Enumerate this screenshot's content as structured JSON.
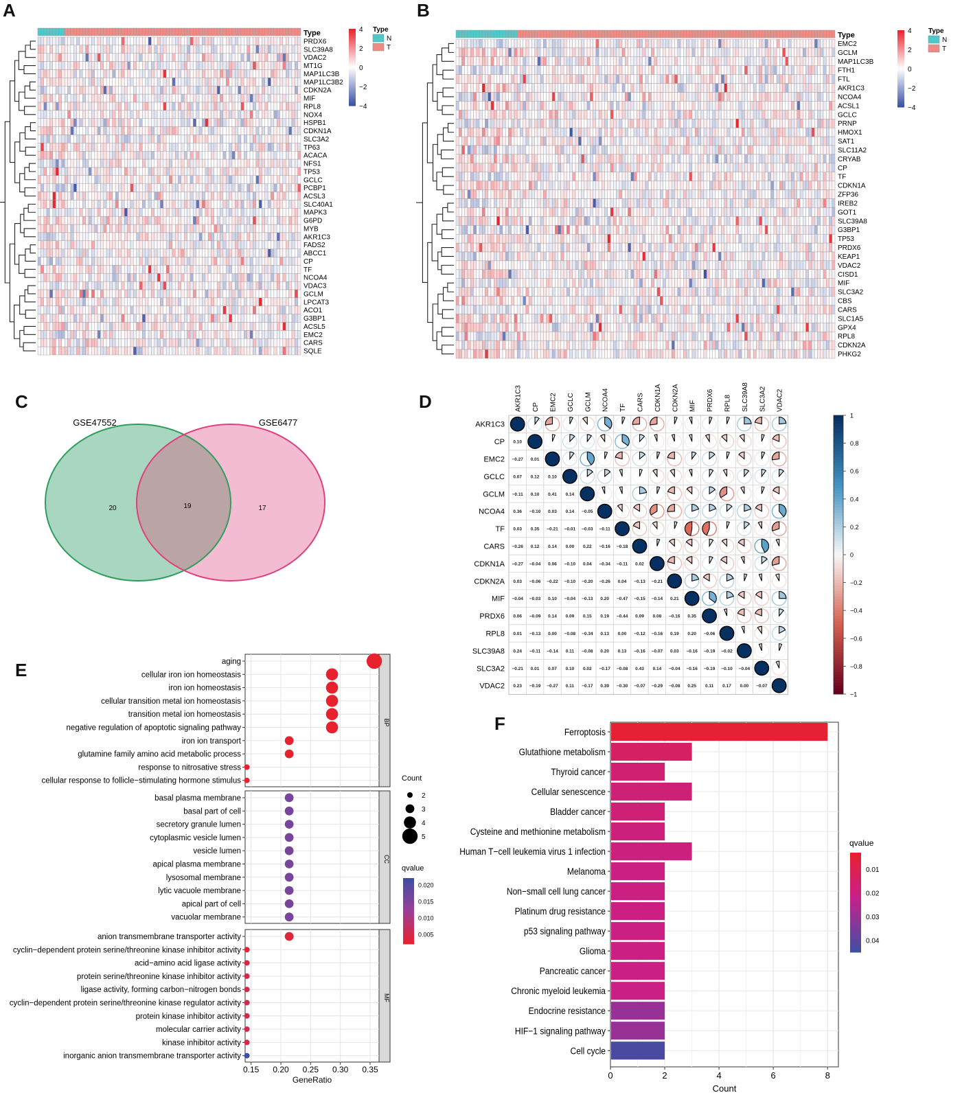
{
  "panels": {
    "A": {
      "letter": "A",
      "annotation_title": "Type",
      "legend_title": "Type",
      "groups": [
        {
          "label": "N",
          "color": "#4ec9c9"
        },
        {
          "label": "T",
          "color": "#f08a84"
        }
      ],
      "n_normal": 9,
      "n_tumor": 79,
      "colorbar_ticks": [
        4,
        2,
        0,
        -2,
        -4
      ],
      "colorbar_tick_labels": [
        "4",
        "2",
        "0",
        "−2",
        "−4"
      ],
      "genes": [
        "PRDX6",
        "SLC39A8",
        "VDAC2",
        "MT1G",
        "MAP1LC3B",
        "MAP1LC3B2",
        "CDKN2A",
        "MIF",
        "RPL8",
        "NOX4",
        "HSPB1",
        "CDKN1A",
        "SLC3A2",
        "TP63",
        "ACACA",
        "NFS1",
        "TP53",
        "GCLC",
        "PCBP1",
        "ACSL3",
        "SLC40A1",
        "MAPK3",
        "G6PD",
        "MYB",
        "AKR1C3",
        "FADS2",
        "ABCC1",
        "CP",
        "TF",
        "NCOA4",
        "VDAC3",
        "GCLM",
        "LPCAT3",
        "ACO1",
        "G3BP1",
        "ACSL5",
        "EMC2",
        "CARS",
        "SQLE"
      ]
    },
    "B": {
      "letter": "B",
      "annotation_title": "Type",
      "legend_title": "Type",
      "groups": [
        {
          "label": "N",
          "color": "#4ec9c9"
        },
        {
          "label": "T",
          "color": "#f08a84"
        }
      ],
      "n_normal": 21,
      "n_tumor": 109,
      "colorbar_ticks": [
        4,
        2,
        0,
        -2,
        -4
      ],
      "colorbar_tick_labels": [
        "4",
        "2",
        "0",
        "−2",
        "−4"
      ],
      "genes": [
        "EMC2",
        "GCLM",
        "MAP1LC3B",
        "FTH1",
        "FTL",
        "AKR1C3",
        "NCOA4",
        "ACSL1",
        "GCLC",
        "PRNP",
        "HMOX1",
        "SAT1",
        "SLC11A2",
        "CRYAB",
        "CP",
        "TF",
        "CDKN1A",
        "ZFP36",
        "IREB2",
        "GOT1",
        "SLC39A8",
        "G3BP1",
        "TP53",
        "PRDX6",
        "KEAP1",
        "VDAC2",
        "CISD1",
        "MIF",
        "SLC3A2",
        "CBS",
        "CARS",
        "SLC1A5",
        "GPX4",
        "RPL8",
        "CDKN2A",
        "PHKG2"
      ]
    },
    "C": {
      "letter": "C",
      "sets": [
        {
          "name": "GSE47552",
          "only": 20,
          "fill": "#a9d6c0",
          "stroke": "#2e9e5b"
        },
        {
          "name": "GSE6477",
          "only": 17,
          "fill": "#f4bcd3",
          "stroke": "#e0407c"
        }
      ],
      "overlap": 19,
      "overlap_fill": "#bba4a6"
    },
    "D": {
      "letter": "D",
      "genes": [
        "AKR1C3",
        "CP",
        "EMC2",
        "GCLC",
        "GCLM",
        "NCOA4",
        "TF",
        "CARS",
        "CDKN1A",
        "CDKN2A",
        "MIF",
        "PRDX6",
        "RPL8",
        "SLC39A8",
        "SLC3A2",
        "VDAC2"
      ],
      "lower": [
        [],
        [
          "0.10"
        ],
        [
          "−0.27",
          "0.01"
        ],
        [
          "0.07",
          "0.12",
          "0.10"
        ],
        [
          "−0.11",
          "0.10",
          "0.41",
          "0.14"
        ],
        [
          "0.36",
          "−0.10",
          "0.03",
          "0.14",
          "−0.05"
        ],
        [
          "0.03",
          "0.35",
          "−0.21",
          "−0.01",
          "−0.03",
          "−0.11"
        ],
        [
          "−0.26",
          "0.12",
          "0.14",
          "0.00",
          "0.22",
          "−0.16",
          "−0.18"
        ],
        [
          "−0.27",
          "−0.04",
          "0.06",
          "−0.10",
          "0.04",
          "−0.34",
          "−0.11",
          "0.02"
        ],
        [
          "0.03",
          "−0.06",
          "−0.22",
          "−0.10",
          "−0.20",
          "−0.26",
          "0.04",
          "−0.13",
          "−0.21"
        ],
        [
          "−0.04",
          "−0.03",
          "0.10",
          "−0.04",
          "−0.13",
          "0.20",
          "−0.47",
          "−0.15",
          "−0.14",
          "0.21"
        ],
        [
          "0.06",
          "−0.09",
          "0.14",
          "0.09",
          "0.15",
          "0.19",
          "−0.44",
          "0.09",
          "0.08",
          "−0.16",
          "0.35"
        ],
        [
          "0.01",
          "−0.13",
          "0.00",
          "−0.08",
          "−0.34",
          "0.13",
          "0.00",
          "−0.12",
          "−0.16",
          "0.19",
          "0.20",
          "−0.06"
        ],
        [
          "0.24",
          "−0.11",
          "−0.14",
          "0.11",
          "−0.08",
          "0.20",
          "0.13",
          "−0.16",
          "−0.07",
          "0.03",
          "−0.16",
          "−0.19",
          "−0.02"
        ],
        [
          "−0.21",
          "0.01",
          "0.07",
          "0.10",
          "0.02",
          "−0.17",
          "−0.08",
          "0.43",
          "0.14",
          "−0.04",
          "−0.16",
          "−0.19",
          "−0.10",
          "−0.04"
        ],
        [
          "0.23",
          "−0.19",
          "−0.27",
          "0.11",
          "−0.17",
          "0.39",
          "−0.30",
          "−0.07",
          "−0.29",
          "−0.08",
          "0.25",
          "0.11",
          "0.17",
          "0.00",
          "−0.07"
        ]
      ],
      "colorbar_ticks": [
        1,
        0.8,
        0.6,
        0.4,
        0.2,
        0,
        -0.2,
        -0.4,
        -0.6,
        -0.8,
        -1
      ],
      "colorbar_tick_labels": [
        "1",
        "0.8",
        "0.6",
        "0.4",
        "0.2",
        "0",
        "−0.2",
        "−0.4",
        "−0.6",
        "−0.8",
        "−1"
      ]
    },
    "E": {
      "letter": "E",
      "xlabel": "GeneRatio",
      "x_ticks": [
        0.15,
        0.2,
        0.25,
        0.3,
        0.35
      ],
      "x_tick_labels": [
        "0.15",
        "0.20",
        "0.25",
        "0.30",
        "0.35"
      ],
      "xlim": [
        0.14,
        0.365
      ],
      "size_legend_title": "Count",
      "size_legend": [
        2,
        3,
        4,
        5
      ],
      "color_legend_title": "qvalue",
      "color_legend_ticks": [
        0.02,
        0.015,
        0.01,
        0.005
      ],
      "color_legend_tick_labels": [
        "0.020",
        "0.015",
        "0.010",
        "0.005"
      ],
      "qlim": [
        0.002,
        0.022
      ],
      "facets": [
        {
          "label": "BP",
          "terms": [
            {
              "term": "aging",
              "ratio": 0.357,
              "count": 5,
              "q": 0.002
            },
            {
              "term": "cellular iron ion homeostasis",
              "ratio": 0.286,
              "count": 4,
              "q": 0.002
            },
            {
              "term": "iron ion homeostasis",
              "ratio": 0.286,
              "count": 4,
              "q": 0.002
            },
            {
              "term": "cellular transition metal ion homeostasis",
              "ratio": 0.286,
              "count": 4,
              "q": 0.002
            },
            {
              "term": "transition metal ion homeostasis",
              "ratio": 0.286,
              "count": 4,
              "q": 0.002
            },
            {
              "term": "negative regulation of apoptotic signaling pathway",
              "ratio": 0.286,
              "count": 4,
              "q": 0.002
            },
            {
              "term": "iron ion transport",
              "ratio": 0.214,
              "count": 3,
              "q": 0.002
            },
            {
              "term": "glutamine family amino acid metabolic process",
              "ratio": 0.214,
              "count": 3,
              "q": 0.002
            },
            {
              "term": "response to nitrosative stress",
              "ratio": 0.143,
              "count": 2,
              "q": 0.002
            },
            {
              "term": "cellular response to follicle−stimulating hormone stimulus",
              "ratio": 0.143,
              "count": 2,
              "q": 0.002
            }
          ]
        },
        {
          "label": "CC",
          "terms": [
            {
              "term": "basal plasma membrane",
              "ratio": 0.214,
              "count": 3,
              "q": 0.016
            },
            {
              "term": "basal part of cell",
              "ratio": 0.214,
              "count": 3,
              "q": 0.016
            },
            {
              "term": "secretory granule lumen",
              "ratio": 0.214,
              "count": 3,
              "q": 0.016
            },
            {
              "term": "cytoplasmic vesicle lumen",
              "ratio": 0.214,
              "count": 3,
              "q": 0.016
            },
            {
              "term": "vesicle lumen",
              "ratio": 0.214,
              "count": 3,
              "q": 0.016
            },
            {
              "term": "apical plasma membrane",
              "ratio": 0.214,
              "count": 3,
              "q": 0.016
            },
            {
              "term": "lysosomal membrane",
              "ratio": 0.214,
              "count": 3,
              "q": 0.016
            },
            {
              "term": "lytic vacuole membrane",
              "ratio": 0.214,
              "count": 3,
              "q": 0.016
            },
            {
              "term": "apical part of cell",
              "ratio": 0.214,
              "count": 3,
              "q": 0.016
            },
            {
              "term": "vacuolar membrane",
              "ratio": 0.214,
              "count": 3,
              "q": 0.016
            }
          ]
        },
        {
          "label": "MF",
          "terms": [
            {
              "term": "anion transmembrane transporter activity",
              "ratio": 0.214,
              "count": 3,
              "q": 0.003
            },
            {
              "term": "cyclin−dependent protein serine/threonine kinase inhibitor activity",
              "ratio": 0.143,
              "count": 2,
              "q": 0.003
            },
            {
              "term": "acid−amino acid ligase activity",
              "ratio": 0.143,
              "count": 2,
              "q": 0.004
            },
            {
              "term": "protein serine/threonine kinase inhibitor activity",
              "ratio": 0.143,
              "count": 2,
              "q": 0.005
            },
            {
              "term": "ligase activity, forming carbon−nitrogen bonds",
              "ratio": 0.143,
              "count": 2,
              "q": 0.005
            },
            {
              "term": "cyclin−dependent protein serine/threonine kinase regulator activity",
              "ratio": 0.143,
              "count": 2,
              "q": 0.005
            },
            {
              "term": "protein kinase inhibitor activity",
              "ratio": 0.143,
              "count": 2,
              "q": 0.005
            },
            {
              "term": "molecular carrier activity",
              "ratio": 0.143,
              "count": 2,
              "q": 0.005
            },
            {
              "term": "kinase inhibitor activity",
              "ratio": 0.143,
              "count": 2,
              "q": 0.005
            },
            {
              "term": "inorganic anion transmembrane transporter activity",
              "ratio": 0.143,
              "count": 2,
              "q": 0.022
            }
          ]
        }
      ]
    },
    "F": {
      "letter": "F",
      "xlabel": "Count",
      "x_ticks": [
        0,
        2,
        4,
        6,
        8
      ],
      "x_tick_labels": [
        "0",
        "2",
        "4",
        "6",
        "8"
      ],
      "xlim": [
        0,
        8.4
      ],
      "legend_title": "qvalue",
      "legend_ticks": [
        0.01,
        0.02,
        0.03,
        0.04
      ],
      "legend_tick_labels": [
        "0.01",
        "0.02",
        "0.03",
        "0.04"
      ],
      "qlim": [
        0.003,
        0.045
      ],
      "bars": [
        {
          "term": "Ferroptosis",
          "count": 8,
          "q": 0.004
        },
        {
          "term": "Glutathione metabolism",
          "count": 3,
          "q": 0.014
        },
        {
          "term": "Thyroid cancer",
          "count": 2,
          "q": 0.017
        },
        {
          "term": "Cellular senescence",
          "count": 3,
          "q": 0.018
        },
        {
          "term": "Bladder cancer",
          "count": 2,
          "q": 0.018
        },
        {
          "term": "Cysteine and methionine metabolism",
          "count": 2,
          "q": 0.019
        },
        {
          "term": "Human T−cell leukemia virus 1 infection",
          "count": 3,
          "q": 0.019
        },
        {
          "term": "Melanoma",
          "count": 2,
          "q": 0.02
        },
        {
          "term": "Non−small cell lung cancer",
          "count": 2,
          "q": 0.02
        },
        {
          "term": "Platinum drug resistance",
          "count": 2,
          "q": 0.02
        },
        {
          "term": "p53 signaling pathway",
          "count": 2,
          "q": 0.02
        },
        {
          "term": "Glioma",
          "count": 2,
          "q": 0.02
        },
        {
          "term": "Pancreatic cancer",
          "count": 2,
          "q": 0.021
        },
        {
          "term": "Chronic myeloid leukemia",
          "count": 2,
          "q": 0.021
        },
        {
          "term": "Endocrine resistance",
          "count": 2,
          "q": 0.03
        },
        {
          "term": "HIF−1 signaling pathway",
          "count": 2,
          "q": 0.03
        },
        {
          "term": "Cell cycle",
          "count": 2,
          "q": 0.043
        }
      ]
    }
  },
  "chart_data": [
    {
      "type": "heatmap",
      "panel": "A",
      "title": "",
      "legend": "Type: N, T",
      "rows": "panels.A.genes",
      "value_range": [
        -4,
        4
      ]
    },
    {
      "type": "heatmap",
      "panel": "B",
      "title": "",
      "legend": "Type: N, T",
      "rows": "panels.B.genes",
      "value_range": [
        -4,
        4
      ]
    },
    {
      "type": "other",
      "subtype": "venn",
      "panel": "C",
      "sets": [
        "GSE47552",
        "GSE6477"
      ],
      "values": {
        "GSE47552_only": 20,
        "overlap": 19,
        "GSE6477_only": 17
      }
    },
    {
      "type": "heatmap",
      "subtype": "correlation",
      "panel": "D",
      "rows": "panels.D.genes",
      "values": "panels.D.lower",
      "value_range": [
        -1,
        1
      ]
    },
    {
      "type": "scatter",
      "subtype": "dotplot",
      "panel": "E",
      "xlabel": "GeneRatio",
      "xlim": [
        0.14,
        0.365
      ],
      "series": "panels.E.facets"
    },
    {
      "type": "bar",
      "orientation": "horizontal",
      "panel": "F",
      "xlabel": "Count",
      "xlim": [
        0,
        8.4
      ],
      "categories": [
        "Ferroptosis",
        "Glutathione metabolism",
        "Thyroid cancer",
        "Cellular senescence",
        "Bladder cancer",
        "Cysteine and methionine metabolism",
        "Human T−cell leukemia virus 1 infection",
        "Melanoma",
        "Non−small cell lung cancer",
        "Platinum drug resistance",
        "p53 signaling pathway",
        "Glioma",
        "Pancreatic cancer",
        "Chronic myeloid leukemia",
        "Endocrine resistance",
        "HIF−1 signaling pathway",
        "Cell cycle"
      ],
      "values": [
        8,
        3,
        2,
        3,
        2,
        2,
        3,
        2,
        2,
        2,
        2,
        2,
        2,
        2,
        2,
        2,
        2
      ]
    }
  ]
}
